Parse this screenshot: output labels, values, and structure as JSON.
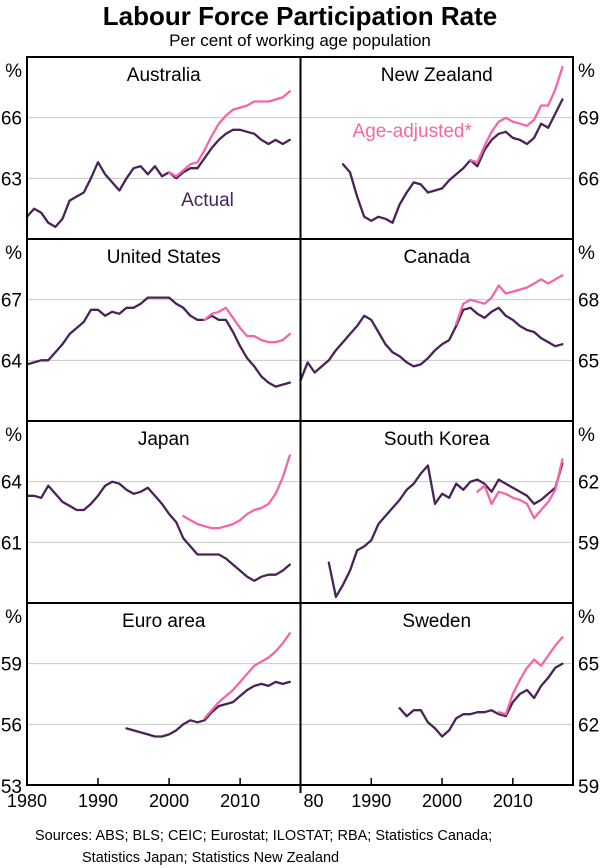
{
  "page": {
    "title": "Labour Force Participation Rate",
    "subtitle": "Per cent of working age population",
    "sources_line1": "Sources: ABS; BLS; CEIC; Eurostat; ILOSTAT; RBA; Statistics Canada;",
    "sources_line2": "Statistics Japan; Statistics New Zealand"
  },
  "colors": {
    "actual": "#4A2258",
    "adjusted": "#F566A6",
    "grid": "#C8C8C8",
    "axis": "#000000"
  },
  "chart_data": {
    "type": "line",
    "title": "Labour Force Participation Rate",
    "subtitle": "Per cent of working age population",
    "unit": "%",
    "x_range": [
      1980,
      2018.5
    ],
    "x_ticks": [
      {
        "col": 0,
        "year": 1980,
        "label": "1980",
        "tick": false,
        "dx": 0
      },
      {
        "col": 0,
        "year": 1990,
        "label": "1990",
        "tick": true,
        "dx": 0
      },
      {
        "col": 0,
        "year": 2000,
        "label": "2000",
        "tick": true,
        "dx": 0
      },
      {
        "col": 0,
        "year": 2010,
        "label": "2010",
        "tick": true,
        "dx": 0
      },
      {
        "col": 1,
        "year": 1980,
        "label": "80",
        "tick": false,
        "dx": 13
      },
      {
        "col": 1,
        "year": 1990,
        "label": "1990",
        "tick": true,
        "dx": 0
      },
      {
        "col": 1,
        "year": 2000,
        "label": "2000",
        "tick": true,
        "dx": 0
      },
      {
        "col": 1,
        "year": 2010,
        "label": "2010",
        "tick": true,
        "dx": 0
      }
    ],
    "panels": [
      {
        "title": "Australia",
        "row": 0,
        "col": 0,
        "ylim": [
          60,
          69
        ],
        "yticks": [
          63,
          66
        ],
        "unit": "%",
        "bottom_axis_label": null,
        "annotations": [
          {
            "text": "Actual",
            "color_key": "actual",
            "fx": 0.66,
            "fy": 0.82
          }
        ],
        "series": [
          {
            "name": "Actual",
            "color_key": "actual",
            "start_year": 1980,
            "values": [
              61.1,
              61.5,
              61.3,
              60.8,
              60.6,
              61.0,
              61.9,
              62.1,
              62.3,
              63.0,
              63.8,
              63.2,
              62.8,
              62.4,
              63.0,
              63.5,
              63.6,
              63.2,
              63.6,
              63.1,
              63.3,
              63.0,
              63.3,
              63.5,
              63.5,
              64.0,
              64.5,
              64.9,
              65.2,
              65.4,
              65.4,
              65.3,
              65.2,
              64.9,
              64.7,
              64.9,
              64.7,
              64.9
            ]
          },
          {
            "name": "Age-adjusted*",
            "color_key": "adjusted",
            "start_year": 2000,
            "values": [
              63.3,
              63.1,
              63.4,
              63.7,
              63.8,
              64.4,
              65.1,
              65.7,
              66.1,
              66.4,
              66.5,
              66.6,
              66.8,
              66.8,
              66.8,
              66.9,
              67.0,
              67.3
            ]
          }
        ]
      },
      {
        "title": "New Zealand",
        "row": 0,
        "col": 1,
        "ylim": [
          63,
          72
        ],
        "yticks": [
          66,
          69
        ],
        "unit": "%",
        "bottom_axis_label": null,
        "annotations": [
          {
            "text": "Age-adjusted*",
            "color_key": "adjusted",
            "fx": 0.41,
            "fy": 0.44
          }
        ],
        "series": [
          {
            "name": "Actual",
            "color_key": "actual",
            "start_year": 1986,
            "values": [
              66.7,
              66.3,
              65.1,
              64.1,
              63.9,
              64.1,
              64.0,
              63.8,
              64.7,
              65.3,
              65.8,
              65.7,
              65.3,
              65.4,
              65.5,
              65.9,
              66.2,
              66.5,
              66.9,
              66.6,
              67.4,
              67.9,
              68.2,
              68.3,
              68.0,
              67.9,
              67.7,
              68.0,
              68.7,
              68.5,
              69.2,
              69.9
            ]
          },
          {
            "name": "Age-adjusted*",
            "color_key": "adjusted",
            "start_year": 2004,
            "values": [
              66.9,
              66.8,
              67.6,
              68.3,
              68.8,
              69.0,
              68.8,
              68.7,
              68.6,
              68.9,
              69.6,
              69.6,
              70.4,
              71.5
            ]
          }
        ]
      },
      {
        "title": "United States",
        "row": 1,
        "col": 0,
        "ylim": [
          61,
          70
        ],
        "yticks": [
          64,
          67
        ],
        "unit": "%",
        "bottom_axis_label": null,
        "annotations": [],
        "series": [
          {
            "name": "Actual",
            "color_key": "actual",
            "start_year": 1980,
            "values": [
              63.8,
              63.9,
              64.0,
              64.0,
              64.4,
              64.8,
              65.3,
              65.6,
              65.9,
              66.5,
              66.5,
              66.2,
              66.4,
              66.3,
              66.6,
              66.6,
              66.8,
              67.1,
              67.1,
              67.1,
              67.1,
              66.8,
              66.6,
              66.2,
              66.0,
              66.0,
              66.2,
              66.0,
              66.0,
              65.4,
              64.7,
              64.1,
              63.7,
              63.2,
              62.9,
              62.7,
              62.8,
              62.9
            ]
          },
          {
            "name": "Age-adjusted*",
            "color_key": "adjusted",
            "start_year": 2005,
            "values": [
              66.0,
              66.3,
              66.4,
              66.6,
              66.1,
              65.6,
              65.2,
              65.2,
              65.0,
              64.9,
              64.9,
              65.0,
              65.3
            ]
          }
        ]
      },
      {
        "title": "Canada",
        "row": 1,
        "col": 1,
        "ylim": [
          62,
          71
        ],
        "yticks": [
          65,
          68
        ],
        "unit": "%",
        "bottom_axis_label": null,
        "annotations": [],
        "series": [
          {
            "name": "Actual",
            "color_key": "actual",
            "start_year": 1980,
            "values": [
              64.0,
              64.9,
              64.4,
              64.7,
              65.0,
              65.5,
              65.9,
              66.3,
              66.7,
              67.2,
              67.0,
              66.4,
              65.8,
              65.4,
              65.2,
              64.9,
              64.7,
              64.8,
              65.1,
              65.5,
              65.8,
              66.0,
              66.7,
              67.5,
              67.6,
              67.3,
              67.1,
              67.4,
              67.6,
              67.2,
              67.0,
              66.7,
              66.5,
              66.4,
              66.1,
              65.9,
              65.7,
              65.8
            ]
          },
          {
            "name": "Age-adjusted*",
            "color_key": "adjusted",
            "start_year": 2002,
            "values": [
              66.8,
              67.8,
              68.0,
              67.9,
              67.8,
              68.1,
              68.7,
              68.3,
              68.4,
              68.5,
              68.6,
              68.8,
              69.0,
              68.8,
              69.0,
              69.2
            ]
          }
        ]
      },
      {
        "title": "Japan",
        "row": 2,
        "col": 0,
        "ylim": [
          58,
          67
        ],
        "yticks": [
          61,
          64
        ],
        "unit": "%",
        "bottom_axis_label": null,
        "annotations": [],
        "series": [
          {
            "name": "Actual",
            "color_key": "actual",
            "start_year": 1980,
            "values": [
              63.3,
              63.3,
              63.2,
              63.8,
              63.4,
              63.0,
              62.8,
              62.6,
              62.6,
              62.9,
              63.3,
              63.8,
              64.0,
              63.9,
              63.6,
              63.4,
              63.5,
              63.7,
              63.3,
              62.9,
              62.4,
              62.0,
              61.2,
              60.8,
              60.4,
              60.4,
              60.4,
              60.4,
              60.2,
              59.9,
              59.6,
              59.3,
              59.1,
              59.3,
              59.4,
              59.4,
              59.6,
              59.9
            ]
          },
          {
            "name": "Age-adjusted*",
            "color_key": "adjusted",
            "start_year": 2002,
            "values": [
              62.3,
              62.1,
              61.9,
              61.8,
              61.7,
              61.7,
              61.8,
              61.9,
              62.1,
              62.4,
              62.6,
              62.7,
              62.9,
              63.4,
              64.2,
              65.3
            ]
          }
        ]
      },
      {
        "title": "South Korea",
        "row": 2,
        "col": 1,
        "ylim": [
          56,
          65
        ],
        "yticks": [
          59,
          62
        ],
        "unit": "%",
        "bottom_axis_label": null,
        "annotations": [],
        "series": [
          {
            "name": "Actual",
            "color_key": "actual",
            "start_year": 1984,
            "values": [
              58.0,
              56.3,
              56.9,
              57.6,
              58.6,
              58.8,
              59.1,
              59.9,
              60.3,
              60.7,
              61.1,
              61.6,
              61.9,
              62.4,
              62.8,
              60.9,
              61.4,
              61.2,
              61.9,
              61.6,
              62.0,
              62.1,
              61.9,
              61.5,
              62.1,
              61.9,
              61.7,
              61.5,
              61.3,
              60.9,
              61.1,
              61.4,
              61.7,
              62.9
            ]
          },
          {
            "name": "Age-adjusted*",
            "color_key": "adjusted",
            "start_year": 2005,
            "values": [
              61.5,
              61.8,
              60.9,
              61.5,
              61.4,
              61.2,
              61.1,
              60.9,
              60.2,
              60.6,
              61.0,
              61.6,
              63.1
            ]
          }
        ]
      },
      {
        "title": "Euro area",
        "row": 3,
        "col": 0,
        "ylim": [
          53,
          62
        ],
        "yticks": [
          56,
          59
        ],
        "unit": "%",
        "bottom_axis_label": "53",
        "annotations": [],
        "series": [
          {
            "name": "Actual",
            "color_key": "actual",
            "start_year": 1994,
            "values": [
              55.8,
              55.7,
              55.6,
              55.5,
              55.4,
              55.4,
              55.5,
              55.7,
              56.0,
              56.2,
              56.1,
              56.2,
              56.6,
              56.9,
              57.0,
              57.1,
              57.4,
              57.7,
              57.9,
              58.0,
              57.9,
              58.1,
              58.0,
              58.1
            ]
          },
          {
            "name": "Age-adjusted*",
            "color_key": "adjusted",
            "start_year": 2005,
            "values": [
              56.3,
              56.7,
              57.1,
              57.4,
              57.7,
              58.1,
              58.5,
              58.9,
              59.1,
              59.3,
              59.6,
              60.0,
              60.5
            ]
          }
        ]
      },
      {
        "title": "Sweden",
        "row": 3,
        "col": 1,
        "ylim": [
          59,
          68
        ],
        "yticks": [
          62,
          65
        ],
        "unit": "%",
        "bottom_axis_label": "59",
        "annotations": [],
        "series": [
          {
            "name": "Actual",
            "color_key": "actual",
            "start_year": 1994,
            "values": [
              62.8,
              62.4,
              62.7,
              62.7,
              62.1,
              61.8,
              61.4,
              61.7,
              62.3,
              62.5,
              62.5,
              62.6,
              62.6,
              62.7,
              62.5,
              62.4,
              63.1,
              63.5,
              63.7,
              63.3,
              63.9,
              64.3,
              64.8,
              65.0
            ]
          },
          {
            "name": "Age-adjusted*",
            "color_key": "adjusted",
            "start_year": 2008,
            "values": [
              62.6,
              62.5,
              63.5,
              64.2,
              64.8,
              65.2,
              64.9,
              65.4,
              65.9,
              66.3
            ]
          }
        ]
      }
    ]
  }
}
